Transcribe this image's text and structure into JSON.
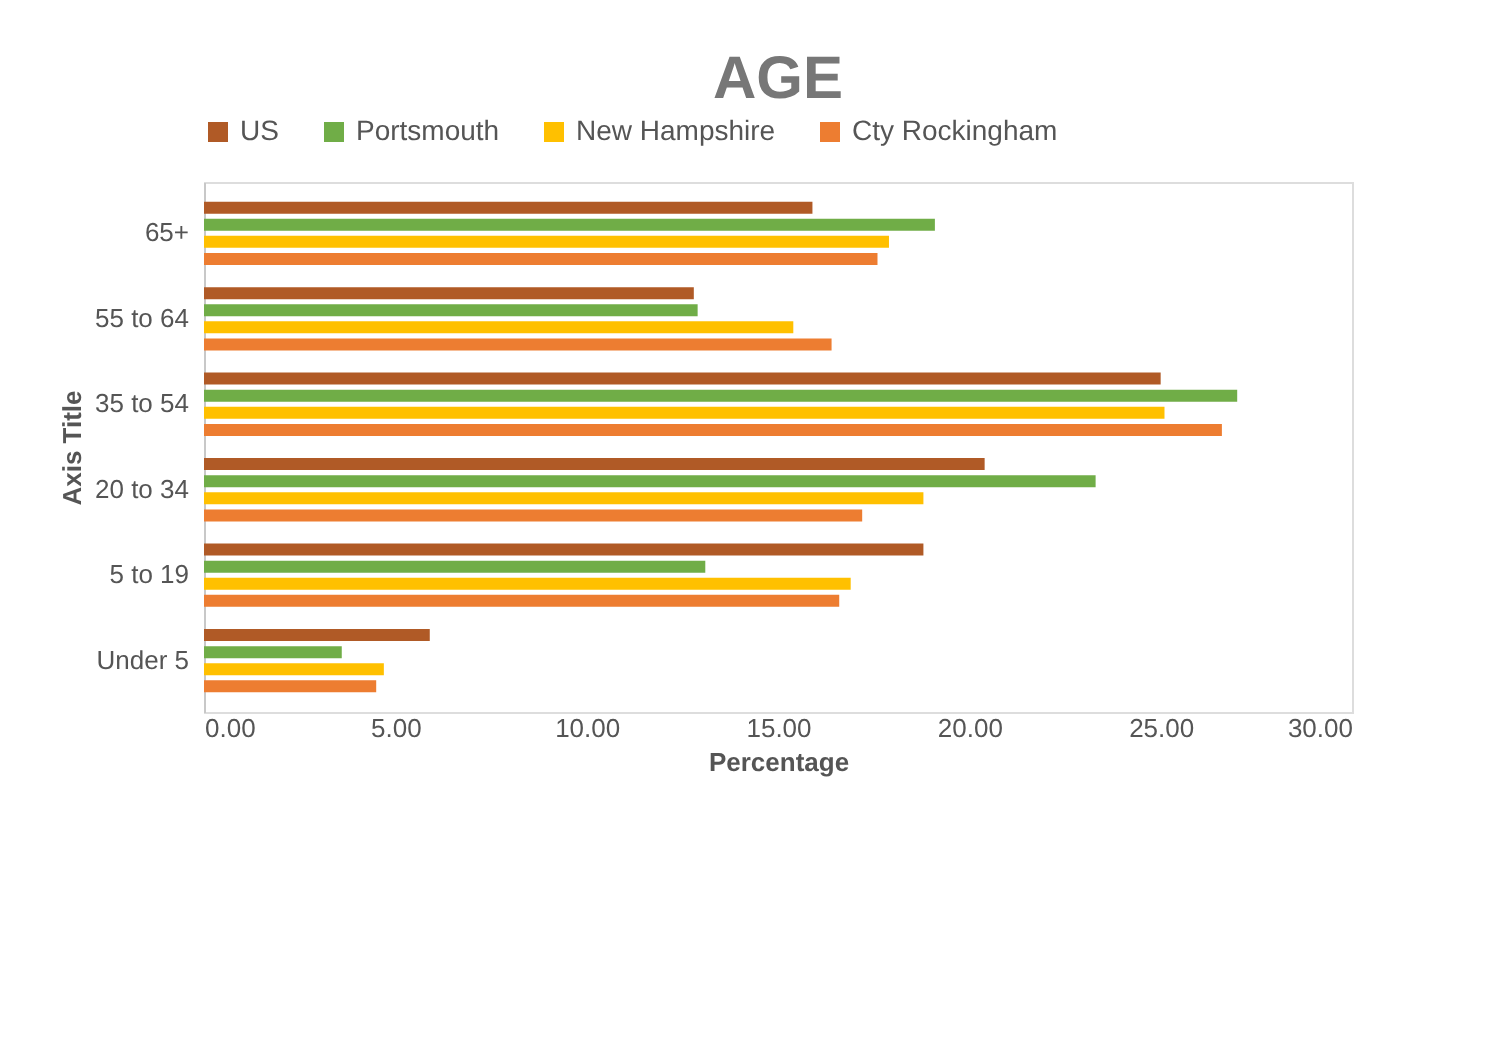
{
  "chart_data": {
    "type": "bar",
    "orientation": "horizontal",
    "title": "AGE",
    "xlabel": "Percentage",
    "ylabel": "Axis Title",
    "categories": [
      "65+",
      "55 to 64",
      "35 to 54",
      "20 to 34",
      "5 to 19",
      "Under 5"
    ],
    "series": [
      {
        "name": "US",
        "color": "#b05a26",
        "values": [
          15.9,
          12.8,
          25.0,
          20.4,
          18.8,
          5.9
        ]
      },
      {
        "name": "Portsmouth",
        "color": "#70ad47",
        "values": [
          19.1,
          12.9,
          27.0,
          23.3,
          13.1,
          3.6
        ]
      },
      {
        "name": "New Hampshire",
        "color": "#ffc000",
        "values": [
          17.9,
          15.4,
          25.1,
          18.8,
          16.9,
          4.7
        ]
      },
      {
        "name": "Cty Rockingham",
        "color": "#ed7d31",
        "values": [
          17.6,
          16.4,
          26.6,
          17.2,
          16.6,
          4.5
        ]
      }
    ],
    "xlim": [
      0,
      30
    ],
    "xticks": [
      {
        "value": 0,
        "label": "0.00"
      },
      {
        "value": 5,
        "label": "5.00"
      },
      {
        "value": 10,
        "label": "10.00"
      },
      {
        "value": 15,
        "label": "15.00"
      },
      {
        "value": 20,
        "label": "20.00"
      },
      {
        "value": 25,
        "label": "25.00"
      },
      {
        "value": 30,
        "label": "30.00"
      }
    ],
    "grid": false,
    "legend": "top"
  }
}
